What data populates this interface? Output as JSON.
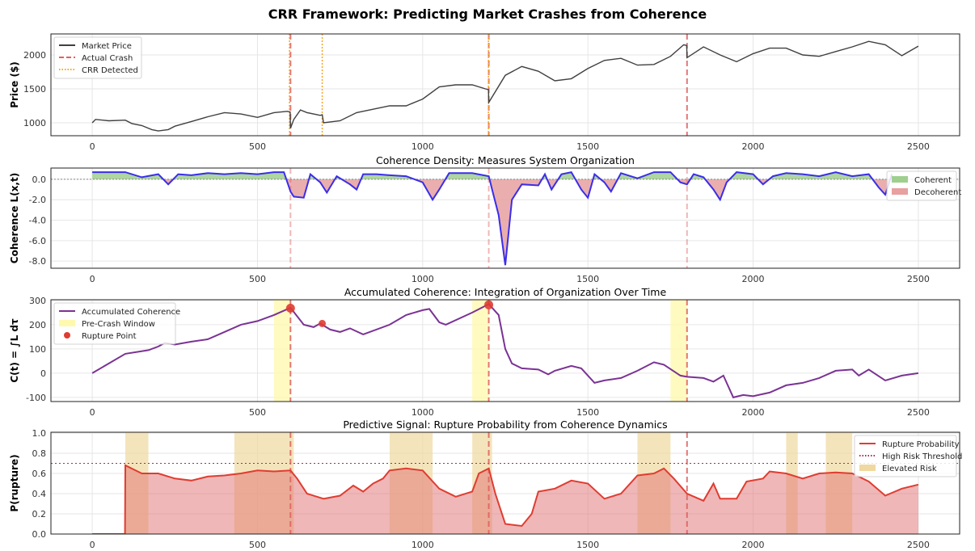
{
  "title": "CRR Framework: Predicting Market Crashes from Coherence",
  "chart_data": [
    {
      "type": "line",
      "title": "",
      "ylabel": "Price ($)",
      "xlim": [
        -125,
        2625
      ],
      "ylim": [
        810,
        2310
      ],
      "xticks": [
        0,
        500,
        1000,
        1500,
        2000,
        2500
      ],
      "yticks": [
        1000,
        1500,
        2000
      ],
      "grid": true,
      "legend": "top-left",
      "series": [
        {
          "name": "Market Price",
          "color": "#404040",
          "x": [
            0,
            10,
            50,
            100,
            120,
            150,
            180,
            200,
            230,
            250,
            300,
            350,
            400,
            450,
            500,
            550,
            590,
            599,
            600,
            610,
            630,
            650,
            690,
            696,
            700,
            750,
            800,
            850,
            900,
            950,
            1000,
            1050,
            1100,
            1150,
            1190,
            1199,
            1200,
            1250,
            1300,
            1350,
            1400,
            1450,
            1500,
            1550,
            1600,
            1650,
            1700,
            1750,
            1790,
            1799,
            1800,
            1850,
            1900,
            1950,
            2000,
            2050,
            2100,
            2150,
            2200,
            2250,
            2300,
            2350,
            2400,
            2450,
            2500
          ],
          "y": [
            1000,
            1050,
            1030,
            1040,
            990,
            960,
            900,
            880,
            900,
            950,
            1020,
            1090,
            1150,
            1130,
            1080,
            1150,
            1170,
            1160,
            920,
            1050,
            1190,
            1150,
            1110,
            1120,
            1000,
            1030,
            1150,
            1200,
            1250,
            1250,
            1350,
            1530,
            1560,
            1560,
            1500,
            1490,
            1300,
            1700,
            1830,
            1760,
            1620,
            1650,
            1800,
            1920,
            1950,
            1850,
            1860,
            1980,
            2150,
            2140,
            1960,
            2120,
            2000,
            1900,
            2020,
            2100,
            2100,
            2000,
            1980,
            2050,
            2120,
            2200,
            2150,
            1990,
            2130
          ]
        }
      ],
      "actual_crash": {
        "name": "Actual Crash",
        "x": [
          600,
          1200,
          1800
        ],
        "color": "#e06060"
      },
      "crr_detected": {
        "name": "CRR Detected",
        "x": [
          597,
          696,
          1199
        ],
        "color": "#f5a623"
      }
    },
    {
      "type": "area",
      "title": "Coherence Density: Measures System Organization",
      "ylabel": "Coherence L(x,t)",
      "xlim": [
        -125,
        2625
      ],
      "ylim": [
        -8.7,
        1.1
      ],
      "xticks": [
        0,
        500,
        1000,
        1500,
        2000,
        2500
      ],
      "yticks": [
        0,
        -2,
        -4,
        -6,
        -8
      ],
      "grid": true,
      "legend": "top-right",
      "series": [
        {
          "name": "",
          "color": "#3a2ee8",
          "x": [
            0,
            100,
            150,
            200,
            230,
            260,
            300,
            350,
            400,
            450,
            500,
            550,
            580,
            600,
            610,
            640,
            660,
            690,
            710,
            740,
            780,
            800,
            820,
            860,
            900,
            950,
            1000,
            1030,
            1050,
            1080,
            1150,
            1200,
            1210,
            1230,
            1250,
            1270,
            1300,
            1350,
            1370,
            1390,
            1420,
            1450,
            1480,
            1500,
            1520,
            1550,
            1570,
            1600,
            1650,
            1700,
            1750,
            1780,
            1800,
            1820,
            1850,
            1880,
            1900,
            1920,
            1950,
            2000,
            2030,
            2060,
            2100,
            2150,
            2200,
            2250,
            2300,
            2350,
            2380,
            2400,
            2420
          ],
          "y": [
            0.7,
            0.7,
            0.2,
            0.5,
            -0.5,
            0.5,
            0.4,
            0.6,
            0.5,
            0.6,
            0.5,
            0.7,
            0.7,
            -1.2,
            -1.7,
            -1.8,
            0.5,
            -0.3,
            -1.3,
            0.3,
            -0.5,
            -1.0,
            0.5,
            0.5,
            0.4,
            0.3,
            -0.3,
            -2.0,
            -1.0,
            0.6,
            0.6,
            0.3,
            -1.0,
            -3.5,
            -8.4,
            -2.0,
            -0.5,
            -0.6,
            0.5,
            -1.0,
            0.5,
            0.7,
            -1.0,
            -1.8,
            0.5,
            -0.3,
            -1.2,
            0.6,
            0.1,
            0.7,
            0.7,
            -0.3,
            -0.5,
            0.5,
            0.2,
            -1.0,
            -2.0,
            -0.3,
            0.7,
            0.5,
            -0.5,
            0.3,
            0.6,
            0.5,
            0.3,
            0.7,
            0.3,
            0.5,
            -0.8,
            -1.5,
            0.5
          ]
        }
      ],
      "fills": [
        {
          "name": "Coherent",
          "color": "#9fcf8f"
        },
        {
          "name": "Decoherent",
          "color": "#e8a0a0"
        }
      ],
      "crash_lines": [
        600,
        1200,
        1800
      ]
    },
    {
      "type": "line",
      "title": "Accumulated Coherence: Integration of Organization Over Time",
      "ylabel": "C(t) = ∫L dτ",
      "xlim": [
        -125,
        2625
      ],
      "ylim": [
        -117,
        303
      ],
      "xticks": [
        0,
        500,
        1000,
        1500,
        2000,
        2500
      ],
      "yticks": [
        -100,
        0,
        100,
        200,
        300
      ],
      "grid": true,
      "legend": "top-left",
      "series": [
        {
          "name": "Accumulated Coherence",
          "color": "#7b3294",
          "x": [
            0,
            100,
            170,
            200,
            220,
            250,
            300,
            350,
            400,
            450,
            500,
            550,
            600,
            640,
            670,
            690,
            720,
            750,
            780,
            820,
            900,
            950,
            1000,
            1020,
            1050,
            1070,
            1150,
            1200,
            1230,
            1250,
            1270,
            1300,
            1350,
            1380,
            1400,
            1450,
            1480,
            1520,
            1550,
            1600,
            1650,
            1700,
            1730,
            1780,
            1800,
            1850,
            1880,
            1910,
            1940,
            1970,
            2000,
            2050,
            2100,
            2150,
            2200,
            2250,
            2300,
            2320,
            2350,
            2400,
            2450,
            2500
          ],
          "y": [
            0,
            80,
            95,
            110,
            125,
            118,
            130,
            140,
            170,
            200,
            215,
            240,
            270,
            200,
            190,
            205,
            180,
            170,
            185,
            160,
            200,
            240,
            260,
            265,
            210,
            200,
            250,
            285,
            240,
            100,
            40,
            20,
            15,
            -5,
            10,
            30,
            20,
            -40,
            -30,
            -20,
            10,
            45,
            35,
            -10,
            -15,
            -20,
            -35,
            -10,
            -100,
            -90,
            -95,
            -80,
            -50,
            -40,
            -20,
            10,
            15,
            -10,
            15,
            -30,
            -10,
            0
          ]
        }
      ],
      "pre_crash_windows": {
        "name": "Pre-Crash Window",
        "color": "#fff9b0",
        "ranges": [
          [
            550,
            600
          ],
          [
            1150,
            1200
          ],
          [
            1750,
            1800
          ]
        ]
      },
      "rupture_points": {
        "name": "Rupture Point",
        "color": "#e03c31",
        "x": [
          600,
          696,
          1200
        ],
        "y": [
          268,
          205,
          282
        ]
      },
      "crash_lines": [
        600,
        1200,
        1800
      ]
    },
    {
      "type": "area",
      "title": "Predictive Signal: Rupture Probability from Coherence Dynamics",
      "ylabel": "P(rupture)",
      "xlim": [
        -125,
        2625
      ],
      "ylim": [
        0,
        1.008
      ],
      "xticks": [
        0,
        500,
        1000,
        1500,
        2000,
        2500
      ],
      "yticks": [
        0.0,
        0.2,
        0.4,
        0.6,
        0.8,
        1.0
      ],
      "grid": true,
      "legend": "top-right",
      "series": [
        {
          "name": "Rupture Probability",
          "color": "#e03c31",
          "x": [
            0,
            99,
            100,
            150,
            200,
            250,
            300,
            350,
            400,
            450,
            500,
            550,
            600,
            620,
            650,
            700,
            750,
            790,
            820,
            850,
            880,
            900,
            950,
            1000,
            1050,
            1100,
            1150,
            1170,
            1200,
            1220,
            1250,
            1300,
            1330,
            1350,
            1400,
            1450,
            1500,
            1550,
            1600,
            1650,
            1700,
            1730,
            1760,
            1800,
            1850,
            1880,
            1900,
            1950,
            1980,
            2030,
            2050,
            2100,
            2150,
            2200,
            2250,
            2300,
            2350,
            2400,
            2450,
            2500
          ],
          "y": [
            0,
            0,
            0.68,
            0.6,
            0.6,
            0.55,
            0.53,
            0.57,
            0.58,
            0.6,
            0.63,
            0.62,
            0.63,
            0.55,
            0.4,
            0.35,
            0.38,
            0.48,
            0.42,
            0.5,
            0.55,
            0.63,
            0.65,
            0.63,
            0.45,
            0.37,
            0.42,
            0.6,
            0.65,
            0.4,
            0.1,
            0.08,
            0.2,
            0.42,
            0.45,
            0.53,
            0.5,
            0.35,
            0.4,
            0.58,
            0.6,
            0.65,
            0.55,
            0.4,
            0.33,
            0.5,
            0.35,
            0.35,
            0.52,
            0.55,
            0.62,
            0.6,
            0.55,
            0.6,
            0.61,
            0.6,
            0.52,
            0.38,
            0.45,
            0.49
          ]
        }
      ],
      "threshold": {
        "name": "High Risk Threshold",
        "y": 0.7,
        "color": "#a03050"
      },
      "elevated_risk": {
        "name": "Elevated Risk",
        "color": "#f0d9a0",
        "ranges": [
          [
            100,
            170
          ],
          [
            430,
            610
          ],
          [
            900,
            1030
          ],
          [
            1150,
            1210
          ],
          [
            1650,
            1750
          ],
          [
            2100,
            2135
          ],
          [
            2220,
            2300
          ]
        ]
      },
      "crash_lines": [
        600,
        1200,
        1800
      ]
    }
  ]
}
